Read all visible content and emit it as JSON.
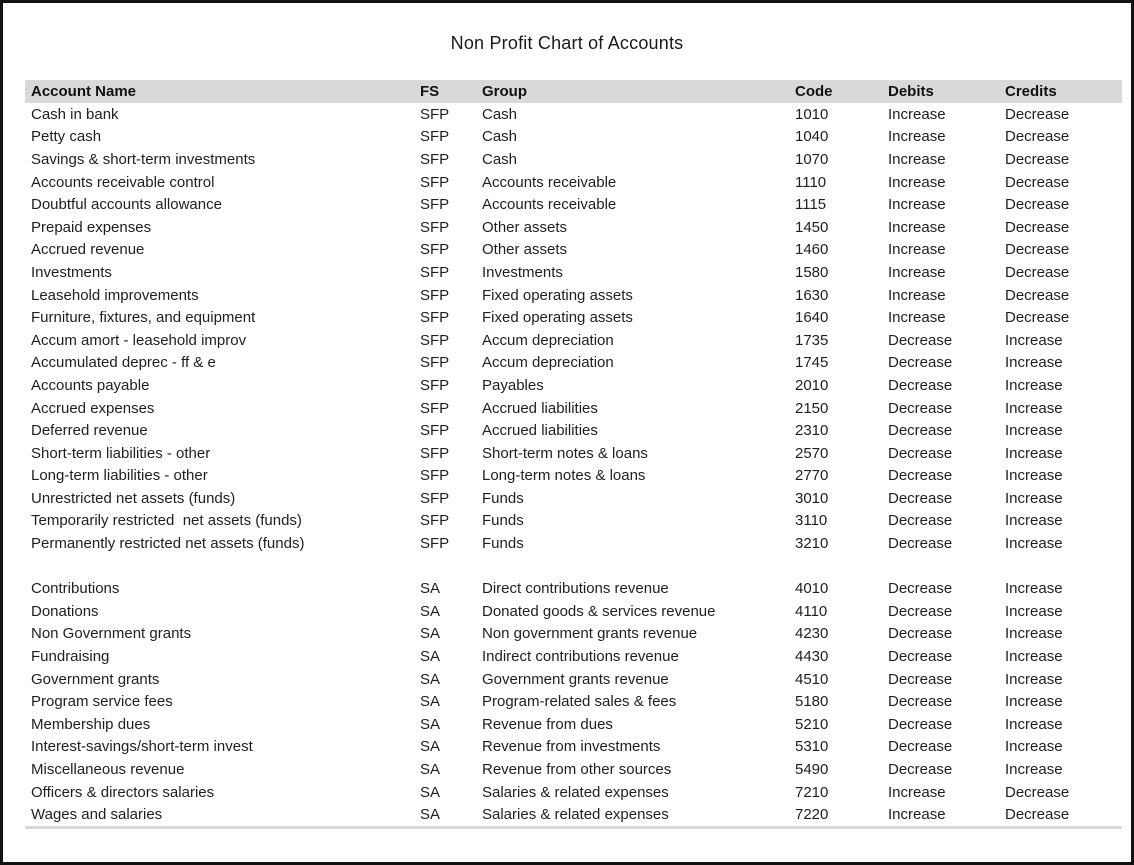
{
  "title": "Non Profit Chart of Accounts",
  "colors": {
    "header_bg": "#d9d9d9",
    "frame_border": "#121212",
    "bottom_rule": "#d8d8d8",
    "text": "#1f1f1f"
  },
  "table": {
    "columns": [
      "Account Name",
      "FS",
      "Group",
      "Code",
      "Debits",
      "Credits"
    ],
    "sections": [
      {
        "name": "statement-of-financial-position",
        "rows": [
          {
            "name": "Cash in bank",
            "fs": "SFP",
            "group": "Cash",
            "code": "1010",
            "debits": "Increase",
            "credits": "Decrease"
          },
          {
            "name": "Petty cash",
            "fs": "SFP",
            "group": "Cash",
            "code": "1040",
            "debits": "Increase",
            "credits": "Decrease"
          },
          {
            "name": "Savings & short-term investments",
            "fs": "SFP",
            "group": "Cash",
            "code": "1070",
            "debits": "Increase",
            "credits": "Decrease"
          },
          {
            "name": "Accounts receivable control",
            "fs": "SFP",
            "group": "Accounts receivable",
            "code": "1110",
            "debits": "Increase",
            "credits": "Decrease"
          },
          {
            "name": "Doubtful accounts allowance",
            "fs": "SFP",
            "group": "Accounts receivable",
            "code": "1115",
            "debits": "Increase",
            "credits": "Decrease"
          },
          {
            "name": "Prepaid expenses",
            "fs": "SFP",
            "group": "Other assets",
            "code": "1450",
            "debits": "Increase",
            "credits": "Decrease"
          },
          {
            "name": "Accrued revenue",
            "fs": "SFP",
            "group": "Other assets",
            "code": "1460",
            "debits": "Increase",
            "credits": "Decrease"
          },
          {
            "name": "Investments",
            "fs": "SFP",
            "group": "Investments",
            "code": "1580",
            "debits": "Increase",
            "credits": "Decrease"
          },
          {
            "name": "Leasehold improvements",
            "fs": "SFP",
            "group": "Fixed operating assets",
            "code": "1630",
            "debits": "Increase",
            "credits": "Decrease"
          },
          {
            "name": "Furniture, fixtures, and equipment",
            "fs": "SFP",
            "group": "Fixed operating assets",
            "code": "1640",
            "debits": "Increase",
            "credits": "Decrease"
          },
          {
            "name": "Accum amort - leasehold improv",
            "fs": "SFP",
            "group": "Accum depreciation",
            "code": "1735",
            "debits": "Decrease",
            "credits": "Increase"
          },
          {
            "name": "Accumulated deprec - ff & e",
            "fs": "SFP",
            "group": "Accum depreciation",
            "code": "1745",
            "debits": "Decrease",
            "credits": "Increase"
          },
          {
            "name": "Accounts payable",
            "fs": "SFP",
            "group": "Payables",
            "code": "2010",
            "debits": "Decrease",
            "credits": "Increase"
          },
          {
            "name": "Accrued expenses",
            "fs": "SFP",
            "group": "Accrued liabilities",
            "code": "2150",
            "debits": "Decrease",
            "credits": "Increase"
          },
          {
            "name": "Deferred revenue",
            "fs": "SFP",
            "group": "Accrued liabilities",
            "code": "2310",
            "debits": "Decrease",
            "credits": "Increase"
          },
          {
            "name": "Short-term liabilities - other",
            "fs": "SFP",
            "group": "Short-term notes & loans",
            "code": "2570",
            "debits": "Decrease",
            "credits": "Increase"
          },
          {
            "name": "Long-term liabilities - other",
            "fs": "SFP",
            "group": "Long-term notes & loans",
            "code": "2770",
            "debits": "Decrease",
            "credits": "Increase"
          },
          {
            "name": "Unrestricted net assets (funds)",
            "fs": "SFP",
            "group": "Funds",
            "code": "3010",
            "debits": "Decrease",
            "credits": "Increase"
          },
          {
            "name": "Temporarily restricted  net assets (funds)",
            "fs": "SFP",
            "group": "Funds",
            "code": "3110",
            "debits": "Decrease",
            "credits": "Increase"
          },
          {
            "name": "Permanently restricted net assets (funds)",
            "fs": "SFP",
            "group": "Funds",
            "code": "3210",
            "debits": "Decrease",
            "credits": "Increase"
          }
        ]
      },
      {
        "name": "statement-of-activities",
        "rows": [
          {
            "name": "Contributions",
            "fs": "SA",
            "group": "Direct contributions revenue",
            "code": "4010",
            "debits": "Decrease",
            "credits": "Increase"
          },
          {
            "name": "Donations",
            "fs": "SA",
            "group": "Donated goods & services revenue",
            "code": "4110",
            "debits": "Decrease",
            "credits": "Increase"
          },
          {
            "name": "Non Government grants",
            "fs": "SA",
            "group": "Non government grants revenue",
            "code": "4230",
            "debits": "Decrease",
            "credits": "Increase"
          },
          {
            "name": "Fundraising",
            "fs": "SA",
            "group": "Indirect contributions revenue",
            "code": "4430",
            "debits": "Decrease",
            "credits": "Increase"
          },
          {
            "name": "Government grants",
            "fs": "SA",
            "group": "Government grants revenue",
            "code": "4510",
            "debits": "Decrease",
            "credits": "Increase"
          },
          {
            "name": "Program service fees",
            "fs": "SA",
            "group": "Program-related sales & fees",
            "code": "5180",
            "debits": "Decrease",
            "credits": "Increase"
          },
          {
            "name": "Membership dues",
            "fs": "SA",
            "group": "Revenue from dues",
            "code": "5210",
            "debits": "Decrease",
            "credits": "Increase"
          },
          {
            "name": "Interest-savings/short-term invest",
            "fs": "SA",
            "group": "Revenue from investments",
            "code": "5310",
            "debits": "Decrease",
            "credits": "Increase"
          },
          {
            "name": "Miscellaneous revenue",
            "fs": "SA",
            "group": "Revenue from other sources",
            "code": "5490",
            "debits": "Decrease",
            "credits": "Increase"
          },
          {
            "name": "Officers & directors salaries",
            "fs": "SA",
            "group": "Salaries & related expenses",
            "code": "7210",
            "debits": "Increase",
            "credits": "Decrease"
          },
          {
            "name": "Wages and salaries",
            "fs": "SA",
            "group": "Salaries & related expenses",
            "code": "7220",
            "debits": "Increase",
            "credits": "Decrease"
          }
        ]
      }
    ]
  }
}
